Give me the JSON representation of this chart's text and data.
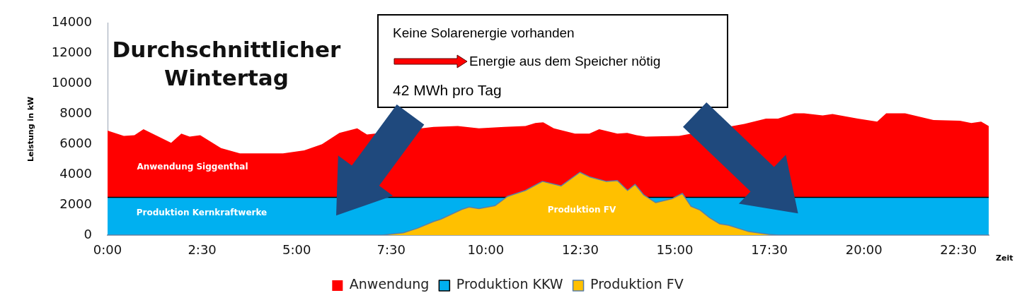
{
  "chart_data": {
    "type": "area",
    "title": "Durchschnittlicher Wintertag",
    "ylabel": "Leistung in kW",
    "xlabel": "Zeit",
    "xlim": [
      0,
      23.3
    ],
    "xticks": [
      {
        "value": 0,
        "label": "0:00"
      },
      {
        "value": 2.5,
        "label": "2:30"
      },
      {
        "value": 5,
        "label": "5:00"
      },
      {
        "value": 7.5,
        "label": "7:30"
      },
      {
        "value": 10,
        "label": "10:00"
      },
      {
        "value": 12.5,
        "label": "12:30"
      },
      {
        "value": 15,
        "label": "15:00"
      },
      {
        "value": 17.5,
        "label": "17:30"
      },
      {
        "value": 20,
        "label": "20:00"
      },
      {
        "value": 22.5,
        "label": "22:30"
      }
    ],
    "ylim": [
      0,
      14000
    ],
    "yticks": [
      0,
      2000,
      4000,
      6000,
      8000,
      10000,
      12000,
      14000
    ],
    "grid": false,
    "legend": "bottom",
    "marker": "none",
    "series": [
      {
        "name": "Anwendung",
        "color": "#ff0000",
        "x": [
          0,
          0.43,
          0.71,
          0.95,
          1.68,
          1.95,
          2.17,
          2.45,
          3.0,
          3.5,
          4.64,
          5.2,
          5.67,
          6.13,
          6.6,
          6.86,
          7.39,
          7.69,
          8.62,
          9.26,
          9.82,
          10.49,
          11.05,
          11.31,
          11.52,
          11.8,
          12.36,
          12.74,
          13.0,
          13.48,
          13.74,
          13.99,
          14.23,
          15.11,
          16.04,
          16.36,
          16.84,
          17.41,
          17.73,
          18.16,
          18.42,
          18.91,
          19.17,
          19.84,
          20.35,
          20.59,
          21.09,
          21.84,
          22.54,
          22.84,
          23.1,
          23.3
        ],
        "values": [
          6900,
          6550,
          6600,
          7000,
          6100,
          6700,
          6500,
          6600,
          5750,
          5400,
          5400,
          5600,
          6000,
          6750,
          7050,
          6650,
          null,
          null,
          7150,
          7200,
          7050,
          7150,
          7200,
          7400,
          7450,
          7050,
          6700,
          6700,
          7000,
          6700,
          6750,
          6600,
          6500,
          6550,
          null,
          null,
          7350,
          7700,
          7700,
          8050,
          8050,
          7900,
          8000,
          7700,
          7500,
          8050,
          8050,
          7600,
          7550,
          7400,
          7500,
          7200
        ]
      },
      {
        "name": "Produktion KKW",
        "color": "#00b0f0",
        "x": [
          0,
          23.3
        ],
        "values": [
          2500,
          2500
        ]
      },
      {
        "name": "Produktion FV",
        "color": "#ffc000",
        "x": [
          0,
          7.26,
          7.82,
          8.19,
          8.62,
          8.81,
          9.37,
          9.56,
          9.82,
          10.25,
          10.57,
          11.05,
          11.5,
          11.99,
          12.49,
          12.74,
          13.18,
          13.48,
          13.75,
          13.95,
          14.18,
          14.49,
          14.92,
          15.2,
          15.43,
          15.67,
          15.92,
          16.18,
          16.42,
          16.93,
          17.49,
          17.73,
          23.3
        ],
        "values": [
          0,
          0,
          150,
          450,
          900,
          1050,
          1700,
          1850,
          1750,
          1950,
          2550,
          2950,
          3550,
          3250,
          4150,
          3850,
          3550,
          3600,
          2950,
          3350,
          2650,
          2150,
          2400,
          2750,
          1900,
          1650,
          1150,
          750,
          650,
          250,
          50,
          0,
          0
        ]
      }
    ],
    "annotations": [
      "Keine Solarenergie vorhanden",
      "Energie aus dem Speicher nötig",
      "42 MWh pro Tag",
      "Anwendung Siggenthal",
      "Produktion Kernkraftwerke",
      "Produktion FV"
    ]
  }
}
